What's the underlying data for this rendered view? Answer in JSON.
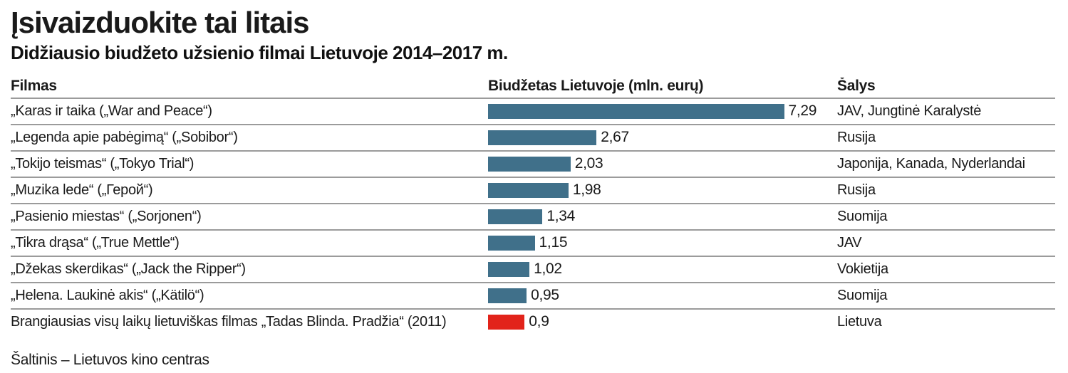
{
  "title": "Įsivaizduokite tai litais",
  "subtitle": "Didžiausio biudžeto užsienio filmai Lietuvoje 2014–2017 m.",
  "source": "Šaltinis – Lietuvos kino centras",
  "columns": {
    "film": "Filmas",
    "budget": "Biudžetas Lietuvoje (mln. eurų)",
    "country": "Šalys"
  },
  "colors": {
    "accent_red": "#e2231a",
    "bar_teal": "#40708a",
    "separator": "#9b9b9b",
    "text": "#1a1a1a"
  },
  "rows": [
    {
      "film": "„Karas ir taika („War and Peace“)",
      "value": 7.29,
      "value_label": "7,29",
      "country": "JAV, Jungtinė Karalystė",
      "highlight": false
    },
    {
      "film": "„Legenda apie pabėgimą“ („Sobibor“)",
      "value": 2.67,
      "value_label": "2,67",
      "country": "Rusija",
      "highlight": false
    },
    {
      "film": "„Tokijo teismas“ („Tokyo Trial“)",
      "value": 2.03,
      "value_label": "2,03",
      "country": "Japonija, Kanada, Nyderlandai",
      "highlight": false
    },
    {
      "film": "„Muzika lede“ („Герой“)",
      "value": 1.98,
      "value_label": "1,98",
      "country": "Rusija",
      "highlight": false
    },
    {
      "film": "„Pasienio miestas“ („Sorjonen“)",
      "value": 1.34,
      "value_label": "1,34",
      "country": "Suomija",
      "highlight": false
    },
    {
      "film": "„Tikra drąsa“ („True Mettle“)",
      "value": 1.15,
      "value_label": "1,15",
      "country": "JAV",
      "highlight": false
    },
    {
      "film": "„Džekas skerdikas“ („Jack the Ripper“)",
      "value": 1.02,
      "value_label": "1,02",
      "country": "Vokietija",
      "highlight": false
    },
    {
      "film": "„Helena. Laukinė akis“ („Kätilö“)",
      "value": 0.95,
      "value_label": "0,95",
      "country": "Suomija",
      "highlight": false
    },
    {
      "film": "Brangiausias visų laikų lietuviškas filmas „Tadas Blinda. Pradžia“ (2011)",
      "value": 0.9,
      "value_label": "0,9",
      "country": "Lietuva",
      "highlight": true
    }
  ],
  "chart_data": {
    "type": "bar",
    "orientation": "horizontal",
    "title": "Įsivaizduokite tai litais",
    "subtitle": "Didžiausio biudžeto užsienio filmai Lietuvoje 2014–2017 m.",
    "xlabel": "Biudžetas Lietuvoje (mln. eurų)",
    "value_unit": "mln. eurų",
    "xlim": [
      0,
      7.5
    ],
    "grid": false,
    "legend": "none",
    "categories": [
      "„Karas ir taika („War and Peace“)",
      "„Legenda apie pabėgimą“ („Sobibor“)",
      "„Tokijo teismas“ („Tokyo Trial“)",
      "„Muzika lede“ („Герой“)",
      "„Pasienio miestas“ („Sorjonen“)",
      "„Tikra drąsa“ („True Mettle“)",
      "„Džekas skerdikas“ („Jack the Ripper“)",
      "„Helena. Laukinė akis“ („Kätilö“)",
      "Brangiausias visų laikų lietuviškas filmas „Tadas Blinda. Pradžia“ (2011)"
    ],
    "values": [
      7.29,
      2.67,
      2.03,
      1.98,
      1.34,
      1.15,
      1.02,
      0.95,
      0.9
    ],
    "value_labels": [
      "7,29",
      "2,67",
      "2,03",
      "1,98",
      "1,34",
      "1,15",
      "1,02",
      "0,95",
      "0,9"
    ],
    "countries": [
      "JAV, Jungtinė Karalystė",
      "Rusija",
      "Japonija, Kanada, Nyderlandai",
      "Rusija",
      "Suomija",
      "JAV",
      "Vokietija",
      "Suomija",
      "Lietuva"
    ],
    "bar_colors": [
      "#40708a",
      "#40708a",
      "#40708a",
      "#40708a",
      "#40708a",
      "#40708a",
      "#40708a",
      "#40708a",
      "#e2231a"
    ],
    "annotations": [
      "Šaltinis – Lietuvos kino centras"
    ]
  }
}
